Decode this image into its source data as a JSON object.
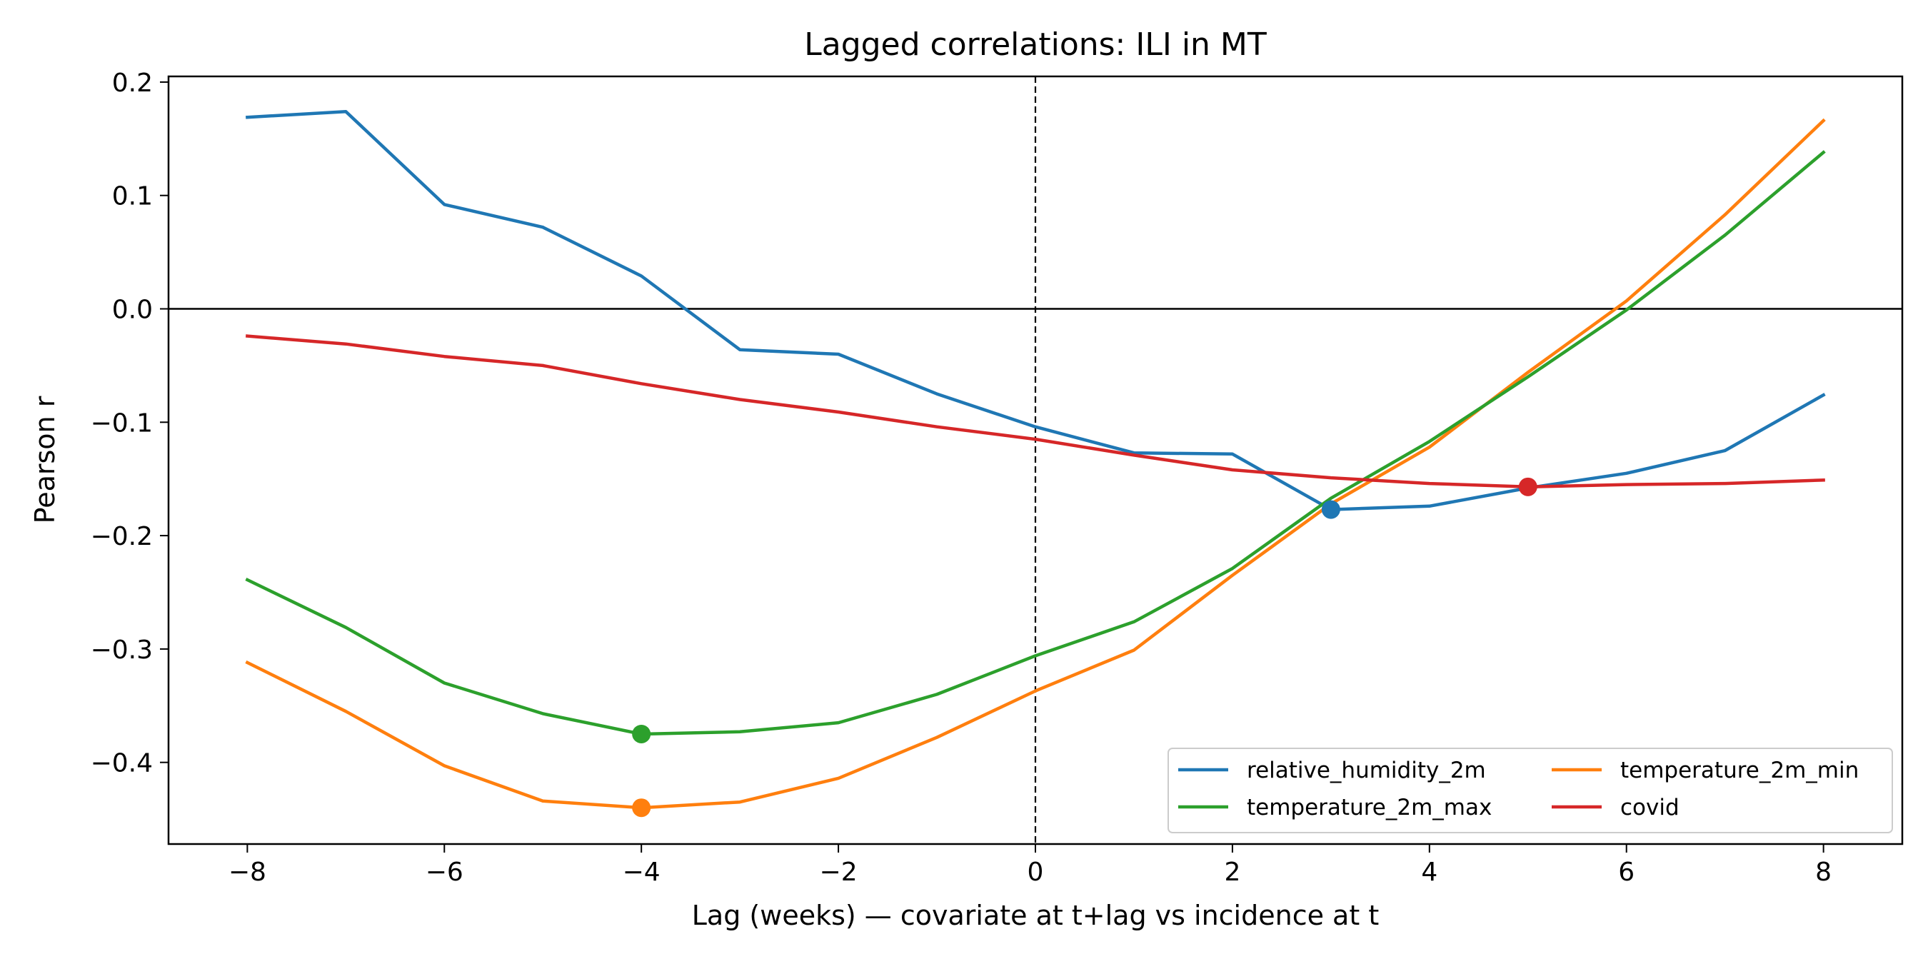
{
  "chart_data": {
    "type": "line",
    "title": "Lagged correlations: ILI in MT",
    "xlabel": "Lag (weeks) — covariate at t+lag vs incidence at t",
    "ylabel": "Pearson r",
    "xlim": [
      -8.8,
      8.8
    ],
    "ylim": [
      -0.472,
      0.205
    ],
    "xticks": [
      -8,
      -6,
      -4,
      -2,
      0,
      2,
      4,
      6,
      8
    ],
    "xtick_labels": [
      "−8",
      "−6",
      "−4",
      "−2",
      "0",
      "2",
      "4",
      "6",
      "8"
    ],
    "yticks": [
      0.2,
      0.1,
      0.0,
      -0.1,
      -0.2,
      -0.3,
      -0.4
    ],
    "ytick_labels": [
      "0.2",
      "0.1",
      "0.0",
      "−0.1",
      "−0.2",
      "−0.3",
      "−0.4"
    ],
    "grid": false,
    "legend_placement": "lower-right",
    "legend_columns": 2,
    "reference_lines": [
      {
        "axis": "y",
        "value": 0,
        "style": "solid"
      },
      {
        "axis": "x",
        "value": 0,
        "style": "dashed"
      }
    ],
    "x": [
      -8,
      -7,
      -6,
      -5,
      -4,
      -3,
      -2,
      -1,
      0,
      1,
      2,
      3,
      4,
      5,
      6,
      7,
      8
    ],
    "series": [
      {
        "name": "relative_humidity_2m",
        "color": "#1f77b4",
        "values": [
          0.169,
          0.174,
          0.092,
          0.072,
          0.029,
          -0.036,
          -0.04,
          -0.075,
          -0.104,
          -0.127,
          -0.128,
          -0.177,
          -0.174,
          -0.158,
          -0.145,
          -0.125,
          -0.076
        ],
        "marker_x": 3
      },
      {
        "name": "temperature_2m_min",
        "color": "#ff7f0e",
        "values": [
          -0.312,
          -0.355,
          -0.403,
          -0.434,
          -0.44,
          -0.435,
          -0.414,
          -0.378,
          -0.337,
          -0.301,
          -0.235,
          -0.172,
          -0.122,
          -0.056,
          0.007,
          0.083,
          0.166
        ],
        "marker_x": -4
      },
      {
        "name": "temperature_2m_max",
        "color": "#2ca02c",
        "values": [
          -0.239,
          -0.281,
          -0.33,
          -0.357,
          -0.375,
          -0.373,
          -0.365,
          -0.34,
          -0.306,
          -0.276,
          -0.229,
          -0.167,
          -0.117,
          -0.06,
          -0.001,
          0.065,
          0.138
        ],
        "marker_x": -4
      },
      {
        "name": "covid",
        "color": "#d62728",
        "values": [
          -0.024,
          -0.031,
          -0.042,
          -0.05,
          -0.066,
          -0.08,
          -0.091,
          -0.104,
          -0.115,
          -0.129,
          -0.142,
          -0.149,
          -0.154,
          -0.157,
          -0.155,
          -0.154,
          -0.151
        ],
        "marker_x": 5
      }
    ]
  }
}
